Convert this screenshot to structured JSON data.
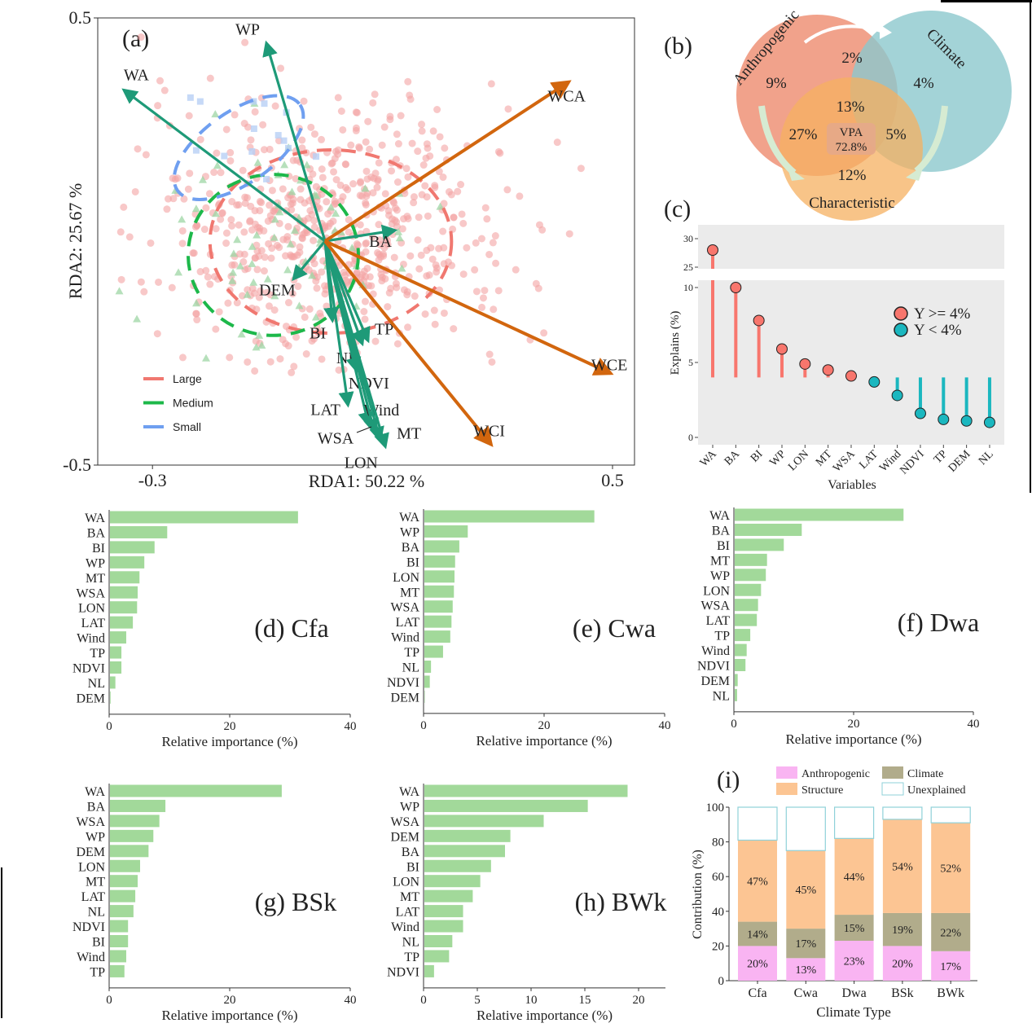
{
  "chart_data": [
    {
      "panel": "(a)",
      "type": "scatter",
      "xlabel": "RDA1: 50.22 %",
      "ylabel": "RDA2: 25.67 %",
      "xlim": [
        -0.4,
        0.58
      ],
      "ylim": [
        -0.5,
        0.5
      ],
      "x_ticks": [
        "-0.3",
        "0.5"
      ],
      "y_ticks": [
        "0.5",
        "-0.5"
      ],
      "x_tick_values": [
        -0.3,
        0.5
      ],
      "y_tick_values": [
        0.5,
        -0.5
      ],
      "legend": {
        "placement": "bottom-left",
        "entries": [
          {
            "name": "Large",
            "color": "#f07870"
          },
          {
            "name": "Medium",
            "color": "#1db84a"
          },
          {
            "name": "Small",
            "color": "#6f9ff0"
          }
        ]
      },
      "groups": [
        {
          "name": "Large",
          "marker": "circle",
          "color": "#f4a3a3",
          "center": [
            0.01,
            0.02
          ],
          "ellipse": {
            "center": [
              0.01,
              0.0
            ],
            "rx": 0.21,
            "ry": 0.205
          }
        },
        {
          "name": "Medium",
          "marker": "triangle",
          "color": "#9ed6a4",
          "center": [
            -0.09,
            0.02
          ],
          "ellipse": {
            "center": [
              -0.09,
              -0.03
            ],
            "rx": 0.148,
            "ry": 0.18
          }
        },
        {
          "name": "Small",
          "marker": "square",
          "color": "#b8d0f5",
          "center": [
            -0.14,
            0.22
          ],
          "ellipse": {
            "center": [
              -0.15,
              0.21
            ],
            "rx": 0.13,
            "ry": 0.08,
            "angle": -35
          }
        }
      ],
      "arrows": [
        {
          "name": "WA",
          "x": -0.35,
          "y": 0.339,
          "color": "#1e9a78"
        },
        {
          "name": "WP",
          "x": -0.102,
          "y": 0.444,
          "color": "#1e9a78"
        },
        {
          "name": "BA",
          "x": 0.122,
          "y": 0.025,
          "color": "#1e9a78"
        },
        {
          "name": "DEM",
          "x": -0.055,
          "y": -0.084,
          "color": "#1e9a78"
        },
        {
          "name": "BI",
          "x": 0.013,
          "y": -0.177,
          "color": "#1e9a78"
        },
        {
          "name": "TP",
          "x": 0.075,
          "y": -0.222,
          "color": "#1e9a78"
        },
        {
          "name": "NL",
          "x": 0.065,
          "y": -0.229,
          "color": "#1e9a78"
        },
        {
          "name": "NDVI",
          "x": 0.055,
          "y": -0.289,
          "color": "#1e9a78"
        },
        {
          "name": "LAT",
          "x": 0.04,
          "y": -0.366,
          "color": "#1e9a78"
        },
        {
          "name": "Wind",
          "x": 0.076,
          "y": -0.411,
          "color": "#1e9a78"
        },
        {
          "name": "WSA",
          "x": 0.086,
          "y": -0.426,
          "color": "#1e9a78"
        },
        {
          "name": "LON",
          "x": 0.096,
          "y": -0.444,
          "color": "#1e9a78"
        },
        {
          "name": "MT",
          "x": 0.105,
          "y": -0.459,
          "color": "#1e9a78"
        },
        {
          "name": "WCA",
          "x": 0.424,
          "y": 0.357,
          "color": "#d2660e"
        },
        {
          "name": "WCE",
          "x": 0.497,
          "y": -0.295,
          "color": "#d2660e"
        },
        {
          "name": "WCI",
          "x": 0.289,
          "y": -0.454,
          "color": "#d2660e"
        }
      ]
    },
    {
      "panel": "(b)",
      "type": "venn",
      "sets": [
        {
          "name": "Anthropogenic",
          "color": "#ee9277"
        },
        {
          "name": "Climate",
          "color": "#8cc8cd"
        },
        {
          "name": "Characteristic",
          "color": "#f5b060"
        }
      ],
      "regions": {
        "anthropogenic_only": "9%",
        "anthropogenic_climate": "2%",
        "climate_only": "4%",
        "all_three": "13%",
        "anthropogenic_characteristic": "27%",
        "climate_characteristic": "5%",
        "characteristic_only": "12%"
      },
      "center_label": "VPA",
      "center_value": "72.8%"
    },
    {
      "panel": "(c)",
      "type": "lollipop",
      "xlabel": "Variables",
      "ylabel": "Explains (%)",
      "baseline": 4,
      "y_break": [
        10.5,
        23
      ],
      "y_ticks_lower": [
        0,
        5,
        10
      ],
      "y_ticks_upper": [
        25,
        30
      ],
      "categories": [
        "WA",
        "BA",
        "BI",
        "WP",
        "LON",
        "MT",
        "WSA",
        "LAT",
        "Wind",
        "NDVI",
        "TP",
        "DEM",
        "NL"
      ],
      "values": [
        28,
        10,
        7.8,
        5.9,
        4.9,
        4.5,
        4.1,
        3.7,
        2.8,
        1.6,
        1.2,
        1.1,
        1.0
      ],
      "legend": [
        {
          "label": "Y >= 4%",
          "color": "#f8766d"
        },
        {
          "label": "Y  <  4%",
          "color": "#1bb7bf"
        }
      ],
      "background": "#ebebeb"
    },
    {
      "panel": "(d)",
      "title": "(d) Cfa",
      "type": "bar",
      "orientation": "horizontal",
      "xlabel": "Relative importance (%)",
      "xlim": [
        0,
        40
      ],
      "x_ticks": [
        0,
        20,
        40
      ],
      "color": "#a2d99a",
      "categories": [
        "WA",
        "BA",
        "BI",
        "WP",
        "MT",
        "WSA",
        "LON",
        "LAT",
        "Wind",
        "TP",
        "NDVI",
        "NL",
        "DEM"
      ],
      "values": [
        31.2,
        9.5,
        7.4,
        5.7,
        4.9,
        4.6,
        4.5,
        3.8,
        2.7,
        1.9,
        1.9,
        0.9,
        0.1
      ]
    },
    {
      "panel": "(e)",
      "title": "(e) Cwa",
      "type": "bar",
      "orientation": "horizontal",
      "xlabel": "Relative importance (%)",
      "xlim": [
        0,
        40
      ],
      "x_ticks": [
        0,
        20,
        40
      ],
      "color": "#a2d99a",
      "categories": [
        "WA",
        "WP",
        "BA",
        "BI",
        "LON",
        "MT",
        "WSA",
        "LAT",
        "Wind",
        "TP",
        "NL",
        "NDVI",
        "DEM"
      ],
      "values": [
        28.2,
        7.2,
        5.8,
        5.1,
        5.0,
        4.9,
        4.7,
        4.5,
        4.3,
        3.1,
        1.1,
        0.9,
        0.05
      ]
    },
    {
      "panel": "(f)",
      "title": "(f) Dwa",
      "type": "bar",
      "orientation": "horizontal",
      "xlabel": "Relative importance (%)",
      "xlim": [
        0,
        40
      ],
      "x_ticks": [
        0,
        20,
        40
      ],
      "color": "#a2d99a",
      "categories": [
        "WA",
        "BA",
        "BI",
        "MT",
        "WP",
        "LON",
        "WSA",
        "LAT",
        "TP",
        "Wind",
        "NDVI",
        "DEM",
        "NL"
      ],
      "values": [
        28.2,
        11.2,
        8.2,
        5.4,
        5.2,
        4.4,
        3.9,
        3.7,
        2.6,
        2.0,
        1.8,
        0.5,
        0.4
      ]
    },
    {
      "panel": "(g)",
      "title": "(g) BSk",
      "type": "bar",
      "orientation": "horizontal",
      "xlabel": "Relative importance (%)",
      "xlim": [
        0,
        40
      ],
      "x_ticks": [
        0,
        20,
        40
      ],
      "color": "#a2d99a",
      "categories": [
        "WA",
        "BA",
        "WSA",
        "WP",
        "DEM",
        "LON",
        "MT",
        "LAT",
        "NL",
        "NDVI",
        "BI",
        "Wind",
        "TP"
      ],
      "values": [
        28.5,
        9.2,
        8.2,
        7.2,
        6.4,
        5.0,
        4.6,
        4.2,
        3.9,
        3.0,
        3.0,
        2.7,
        2.4
      ]
    },
    {
      "panel": "(h)",
      "title": "(h) BWk",
      "type": "bar",
      "orientation": "horizontal",
      "xlabel": "Relative importance (%)",
      "xlim": [
        0,
        22.5
      ],
      "x_ticks": [
        0,
        5,
        10,
        15,
        20
      ],
      "color": "#a2d99a",
      "categories": [
        "WA",
        "WP",
        "WSA",
        "DEM",
        "BA",
        "BI",
        "LON",
        "MT",
        "LAT",
        "Wind",
        "NL",
        "TP",
        "NDVI"
      ],
      "values": [
        18.9,
        15.2,
        11.1,
        8.0,
        7.5,
        6.2,
        5.2,
        4.5,
        3.6,
        3.6,
        2.6,
        2.3,
        0.9
      ]
    },
    {
      "panel": "(i)",
      "type": "stacked_bar",
      "xlabel": "Climate Type",
      "ylabel": "Contribution (%)",
      "ylim": [
        0,
        100
      ],
      "y_ticks": [
        0,
        20,
        40,
        60,
        80,
        100
      ],
      "categories": [
        "Cfa",
        "Cwa",
        "Dwa",
        "BSk",
        "BWk"
      ],
      "legend_placement": "top",
      "series": [
        {
          "name": "Anthropogenic",
          "color": "#f9b4f2",
          "values": [
            20,
            13,
            23,
            20,
            17
          ],
          "labels": [
            "20%",
            "13%",
            "23%",
            "20%",
            "17%"
          ]
        },
        {
          "name": "Climate",
          "color": "#b1ac8b",
          "values": [
            14,
            17,
            15,
            19,
            22
          ],
          "labels": [
            "14%",
            "17%",
            "15%",
            "19%",
            "22%"
          ]
        },
        {
          "name": "Structure",
          "color": "#fcc593",
          "values": [
            47,
            45,
            44,
            54,
            52
          ],
          "labels": [
            "47%",
            "45%",
            "44%",
            "54%",
            "52%"
          ]
        },
        {
          "name": "Unexplained",
          "color": "#ffffff",
          "stroke": "#8fd1d9",
          "values": [
            19,
            25,
            18,
            7,
            9
          ]
        }
      ]
    }
  ]
}
